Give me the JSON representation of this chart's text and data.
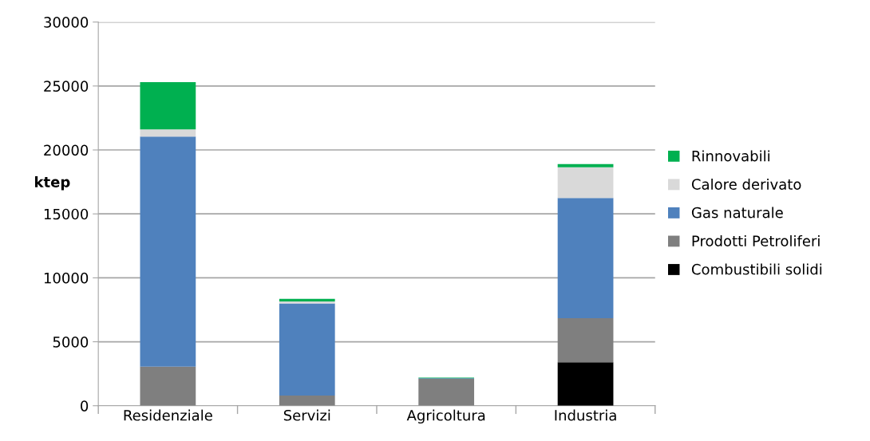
{
  "chart_data": {
    "type": "bar",
    "stacked": true,
    "ylabel": "ktep",
    "categories": [
      "Residenziale",
      "Servizi",
      "Agricoltura",
      "Industria"
    ],
    "series": [
      {
        "name": "Combustibili solidi",
        "color": "#000000",
        "values": [
          0,
          0,
          0,
          3400
        ]
      },
      {
        "name": "Prodotti Petroliferi",
        "color": "#7f7f7f",
        "values": [
          3050,
          800,
          2100,
          3450
        ]
      },
      {
        "name": "Gas naturale",
        "color": "#4f81bd",
        "values": [
          18000,
          7200,
          50,
          9400
        ]
      },
      {
        "name": "Calore derivato",
        "color": "#d9d9d9",
        "values": [
          550,
          150,
          0,
          2400
        ]
      },
      {
        "name": "Rinnovabili",
        "color": "#00b050",
        "values": [
          3700,
          200,
          50,
          250
        ]
      }
    ],
    "ylim": [
      0,
      30000
    ],
    "yticks": [
      0,
      5000,
      10000,
      15000,
      20000,
      25000,
      30000
    ],
    "grid": "y",
    "legend": "right"
  }
}
